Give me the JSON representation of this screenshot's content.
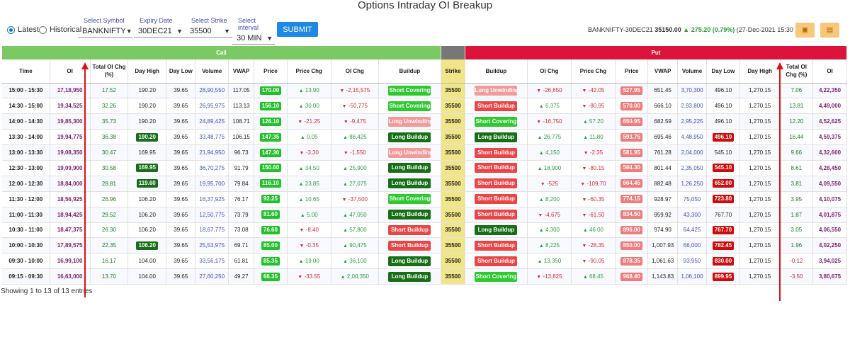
{
  "title": "Options Intraday OI Breakup",
  "controls": {
    "radio_latest": "Latest",
    "radio_historical": "Historical",
    "symbol_label": "Select Symbol",
    "symbol_value": "BANKNIFTY",
    "expiry_label": "Expiry Date",
    "expiry_value": "30DEC21",
    "strike_label": "Select Strike",
    "strike_value": "35500",
    "interval_label": "Select interval",
    "interval_value": "30 MIN",
    "submit_label": "SUBMIT"
  },
  "quote": {
    "instrument": "BANKNIFTY-30DEC21",
    "price": "35150.00",
    "change": "275.20 (0.79%)",
    "timestamp": "(27-Dec-2021 15:30 )"
  },
  "groups": {
    "call": "Call",
    "put": "Put"
  },
  "columns": {
    "time": "Time",
    "oi": "OI",
    "total_oi_chg": "Total OI Chg (%)",
    "day_high": "Day High",
    "day_low": "Day Low",
    "volume": "Volume",
    "vwap": "VWAP",
    "price": "Price",
    "price_chg": "Price Chg",
    "oi_chg": "OI Chg",
    "buildup": "Buildup",
    "strike": "Strike"
  },
  "rows": [
    {
      "time": "15:00 - 15:30",
      "c_oi": "17,18,950",
      "c_toi": "17.52",
      "c_dh": "190.20",
      "c_dh_hl": "",
      "c_dl": "39.65",
      "c_vol": "28,90,550",
      "c_vwap": "117.05",
      "c_price": "170.00",
      "c_price_up": true,
      "c_pchg": "13.90",
      "c_pchg_up": true,
      "c_oichg": "-2,15,575",
      "c_oichg_up": false,
      "c_bu": "Short Covering",
      "strike": "35500",
      "p_bu": "Long Unwinding",
      "p_oichg": "-26,650",
      "p_oichg_up": false,
      "p_pchg": "-42.05",
      "p_pchg_up": false,
      "p_price": "527.95",
      "p_price_up": false,
      "p_vwap": "651.45",
      "p_vol": "3,70,300",
      "p_dl": "496.10",
      "p_dl_hl": "",
      "p_dh": "1,270.15",
      "p_toi": "7.06",
      "p_oi": "4,22,350"
    },
    {
      "time": "14:30 - 15:00",
      "c_oi": "19,34,525",
      "c_toi": "32.26",
      "c_dh": "190.20",
      "c_dh_hl": "",
      "c_dl": "39.65",
      "c_vol": "26,95,975",
      "c_vwap": "113.13",
      "c_price": "156.10",
      "c_price_up": true,
      "c_pchg": "30.00",
      "c_pchg_up": true,
      "c_oichg": "-50,775",
      "c_oichg_up": false,
      "c_bu": "Short Covering",
      "strike": "35500",
      "p_bu": "Short Buildup",
      "p_oichg": "6,375",
      "p_oichg_up": true,
      "p_pchg": "-80.95",
      "p_pchg_up": false,
      "p_price": "570.00",
      "p_price_up": false,
      "p_vwap": "666.10",
      "p_vol": "2,93,800",
      "p_dl": "496.10",
      "p_dl_hl": "",
      "p_dh": "1,270.15",
      "p_toi": "13.81",
      "p_oi": "4,49,000"
    },
    {
      "time": "14:00 - 14:30",
      "c_oi": "19,85,300",
      "c_toi": "35.73",
      "c_dh": "190.20",
      "c_dh_hl": "",
      "c_dl": "39.65",
      "c_vol": "24,89,425",
      "c_vwap": "108.71",
      "c_price": "126.10",
      "c_price_up": true,
      "c_pchg": "-21.25",
      "c_pchg_up": false,
      "c_oichg": "-9,475",
      "c_oichg_up": false,
      "c_bu": "Long Unwinding",
      "strike": "35500",
      "p_bu": "Short Covering",
      "p_oichg": "-16,750",
      "p_oichg_up": false,
      "p_pchg": "57.20",
      "p_pchg_up": true,
      "p_price": "650.95",
      "p_price_up": false,
      "p_vwap": "682.59",
      "p_vol": "2,95,225",
      "p_dl": "496.10",
      "p_dl_hl": "",
      "p_dh": "1,270.15",
      "p_toi": "12.20",
      "p_oi": "4,52,625"
    },
    {
      "time": "13:30 - 14:00",
      "c_oi": "19,94,775",
      "c_toi": "36.38",
      "c_dh": "190.20",
      "c_dh_hl": "up",
      "c_dl": "39.65",
      "c_vol": "33,48,775",
      "c_vwap": "106.15",
      "c_price": "147.35",
      "c_price_up": true,
      "c_pchg": "0.05",
      "c_pchg_up": true,
      "c_oichg": "86,425",
      "c_oichg_up": true,
      "c_bu": "Long Buildup",
      "strike": "35500",
      "p_bu": "Long Buildup",
      "p_oichg": "26,775",
      "p_oichg_up": true,
      "p_pchg": "11.80",
      "p_pchg_up": true,
      "p_price": "593.75",
      "p_price_up": false,
      "p_vwap": "695.46",
      "p_vol": "4,48,950",
      "p_dl": "496.10",
      "p_dl_hl": "dn",
      "p_dh": "1,270.15",
      "p_toi": "16.44",
      "p_oi": "4,59,375"
    },
    {
      "time": "13:00 - 13:30",
      "c_oi": "19,08,350",
      "c_toi": "30.47",
      "c_dh": "169.95",
      "c_dh_hl": "",
      "c_dl": "39.65",
      "c_vol": "21,94,950",
      "c_vwap": "96.73",
      "c_price": "147.30",
      "c_price_up": true,
      "c_pchg": "-3.30",
      "c_pchg_up": false,
      "c_oichg": "-1,550",
      "c_oichg_up": false,
      "c_bu": "Long Unwinding",
      "strike": "35500",
      "p_bu": "Short Buildup",
      "p_oichg": "4,150",
      "p_oichg_up": true,
      "p_pchg": "-2.35",
      "p_pchg_up": false,
      "p_price": "581.95",
      "p_price_up": false,
      "p_vwap": "761.28",
      "p_vol": "2,04,000",
      "p_dl": "545.10",
      "p_dl_hl": "",
      "p_dh": "1,270.15",
      "p_toi": "9.66",
      "p_oi": "4,32,600"
    },
    {
      "time": "12:30 - 13:00",
      "c_oi": "19,09,900",
      "c_toi": "30.58",
      "c_dh": "169.95",
      "c_dh_hl": "up",
      "c_dl": "39.65",
      "c_vol": "36,70,275",
      "c_vwap": "91.79",
      "c_price": "150.60",
      "c_price_up": true,
      "c_pchg": "34.50",
      "c_pchg_up": true,
      "c_oichg": "25,900",
      "c_oichg_up": true,
      "c_bu": "Long Buildup",
      "strike": "35500",
      "p_bu": "Short Buildup",
      "p_oichg": "18,900",
      "p_oichg_up": true,
      "p_pchg": "-80.15",
      "p_pchg_up": false,
      "p_price": "584.30",
      "p_price_up": false,
      "p_vwap": "801.44",
      "p_vol": "2,35,050",
      "p_dl": "545.10",
      "p_dl_hl": "dn",
      "p_dh": "1,270.15",
      "p_toi": "8.61",
      "p_oi": "4,28,450"
    },
    {
      "time": "12:00 - 12:30",
      "c_oi": "18,84,000",
      "c_toi": "28.81",
      "c_dh": "119.60",
      "c_dh_hl": "up",
      "c_dl": "39.65",
      "c_vol": "19,95,700",
      "c_vwap": "79.84",
      "c_price": "116.10",
      "c_price_up": true,
      "c_pchg": "23.85",
      "c_pchg_up": true,
      "c_oichg": "27,075",
      "c_oichg_up": true,
      "c_bu": "Long Buildup",
      "strike": "35500",
      "p_bu": "Short Buildup",
      "p_oichg": "-525",
      "p_oichg_up": false,
      "p_pchg": "-109.70",
      "p_pchg_up": false,
      "p_price": "664.45",
      "p_price_up": false,
      "p_vwap": "882.48",
      "p_vol": "1,26,250",
      "p_dl": "652.00",
      "p_dl_hl": "dn",
      "p_dh": "1,270.15",
      "p_toi": "3.81",
      "p_oi": "4,09,550"
    },
    {
      "time": "11:30 - 12:00",
      "c_oi": "18,56,925",
      "c_toi": "26.96",
      "c_dh": "106.20",
      "c_dh_hl": "",
      "c_dl": "39.65",
      "c_vol": "16,37,925",
      "c_vwap": "76.17",
      "c_price": "92.25",
      "c_price_up": true,
      "c_pchg": "10.65",
      "c_pchg_up": true,
      "c_oichg": "-37,500",
      "c_oichg_up": false,
      "c_bu": "Short Covering",
      "strike": "35500",
      "p_bu": "Short Buildup",
      "p_oichg": "8,200",
      "p_oichg_up": true,
      "p_pchg": "-60.35",
      "p_pchg_up": false,
      "p_price": "774.15",
      "p_price_up": false,
      "p_vwap": "928.97",
      "p_vol": "75,050",
      "p_dl": "723.80",
      "p_dl_hl": "dn",
      "p_dh": "1,270.15",
      "p_toi": "3.95",
      "p_oi": "4,10,075"
    },
    {
      "time": "11:00 - 11:30",
      "c_oi": "18,94,425",
      "c_toi": "29.52",
      "c_dh": "106.20",
      "c_dh_hl": "",
      "c_dl": "39.65",
      "c_vol": "12,50,775",
      "c_vwap": "73.79",
      "c_price": "81.60",
      "c_price_up": true,
      "c_pchg": "5.00",
      "c_pchg_up": true,
      "c_oichg": "47,050",
      "c_oichg_up": true,
      "c_bu": "Long Buildup",
      "strike": "35500",
      "p_bu": "Short Buildup",
      "p_oichg": "-4,675",
      "p_oichg_up": false,
      "p_pchg": "-61.50",
      "p_pchg_up": false,
      "p_price": "834.50",
      "p_price_up": false,
      "p_vwap": "959.92",
      "p_vol": "43,300",
      "p_dl": "767.70",
      "p_dl_hl": "",
      "p_dh": "1,270.15",
      "p_toi": "1.87",
      "p_oi": "4,01,875"
    },
    {
      "time": "10:30 - 11:00",
      "c_oi": "18,47,375",
      "c_toi": "26.30",
      "c_dh": "106.20",
      "c_dh_hl": "",
      "c_dl": "39.65",
      "c_vol": "18,67,775",
      "c_vwap": "73.08",
      "c_price": "76.60",
      "c_price_up": true,
      "c_pchg": "-8.40",
      "c_pchg_up": false,
      "c_oichg": "57,800",
      "c_oichg_up": true,
      "c_bu": "Short Buildup",
      "strike": "35500",
      "p_bu": "Long Buildup",
      "p_oichg": "4,300",
      "p_oichg_up": true,
      "p_pchg": "46.00",
      "p_pchg_up": true,
      "p_price": "896.00",
      "p_price_up": false,
      "p_vwap": "974.90",
      "p_vol": "64,425",
      "p_dl": "767.70",
      "p_dl_hl": "dn",
      "p_dh": "1,270.15",
      "p_toi": "3.05",
      "p_oi": "4,06,550"
    },
    {
      "time": "10:00 - 10:30",
      "c_oi": "17,89,575",
      "c_toi": "22.35",
      "c_dh": "106.20",
      "c_dh_hl": "up",
      "c_dl": "39.65",
      "c_vol": "25,53,975",
      "c_vwap": "69.71",
      "c_price": "85.00",
      "c_price_up": true,
      "c_pchg": "-0.35",
      "c_pchg_up": false,
      "c_oichg": "90,475",
      "c_oichg_up": true,
      "c_bu": "Short Buildup",
      "strike": "35500",
      "p_bu": "Short Buildup",
      "p_oichg": "8,225",
      "p_oichg_up": true,
      "p_pchg": "-28.35",
      "p_pchg_up": false,
      "p_price": "850.00",
      "p_price_up": false,
      "p_vwap": "1,007.93",
      "p_vol": "66,000",
      "p_dl": "782.45",
      "p_dl_hl": "dn",
      "p_dh": "1,270.15",
      "p_toi": "1.96",
      "p_oi": "4,02,250"
    },
    {
      "time": "09:30 - 10:00",
      "c_oi": "16,99,100",
      "c_toi": "16.17",
      "c_dh": "104.00",
      "c_dh_hl": "",
      "c_dl": "39.65",
      "c_vol": "33,56,175",
      "c_vwap": "61.81",
      "c_price": "85.35",
      "c_price_up": true,
      "c_pchg": "19.00",
      "c_pchg_up": true,
      "c_oichg": "36,100",
      "c_oichg_up": true,
      "c_bu": "Long Buildup",
      "strike": "35500",
      "p_bu": "Short Buildup",
      "p_oichg": "13,350",
      "p_oichg_up": true,
      "p_pchg": "-90.05",
      "p_pchg_up": false,
      "p_price": "878.35",
      "p_price_up": false,
      "p_vwap": "1,061.63",
      "p_vol": "93,950",
      "p_dl": "830.00",
      "p_dl_hl": "dn",
      "p_dh": "1,270.15",
      "p_toi": "-0.12",
      "p_oi": "3,94,025"
    },
    {
      "time": "09:15 - 09:30",
      "c_oi": "16,63,000",
      "c_toi": "13.70",
      "c_dh": "104.00",
      "c_dh_hl": "",
      "c_dl": "39.65",
      "c_vol": "27,60,250",
      "c_vwap": "49.27",
      "c_price": "66.35",
      "c_price_up": true,
      "c_pchg": "-33.55",
      "c_pchg_up": false,
      "c_oichg": "2,00,350",
      "c_oichg_up": true,
      "c_bu": "Long Buildup",
      "strike": "35500",
      "p_bu": "Short Covering",
      "p_oichg": "-13,825",
      "p_oichg_up": false,
      "p_pchg": "68.45",
      "p_pchg_up": true,
      "p_price": "968.40",
      "p_price_up": false,
      "p_vwap": "1,143.83",
      "p_vol": "1,06,100",
      "p_dl": "899.95",
      "p_dl_hl": "dn",
      "p_dh": "1,270.15",
      "p_toi": "-3.50",
      "p_oi": "3,80,675"
    }
  ],
  "footer": "Showing 1 to 13 of 13 entries",
  "colors": {
    "call_header": "#7bc962",
    "put_header": "#dc143c",
    "strike_header": "#777777",
    "strike_cell": "#f1e589",
    "annotation_arrow": "#dd1111"
  }
}
